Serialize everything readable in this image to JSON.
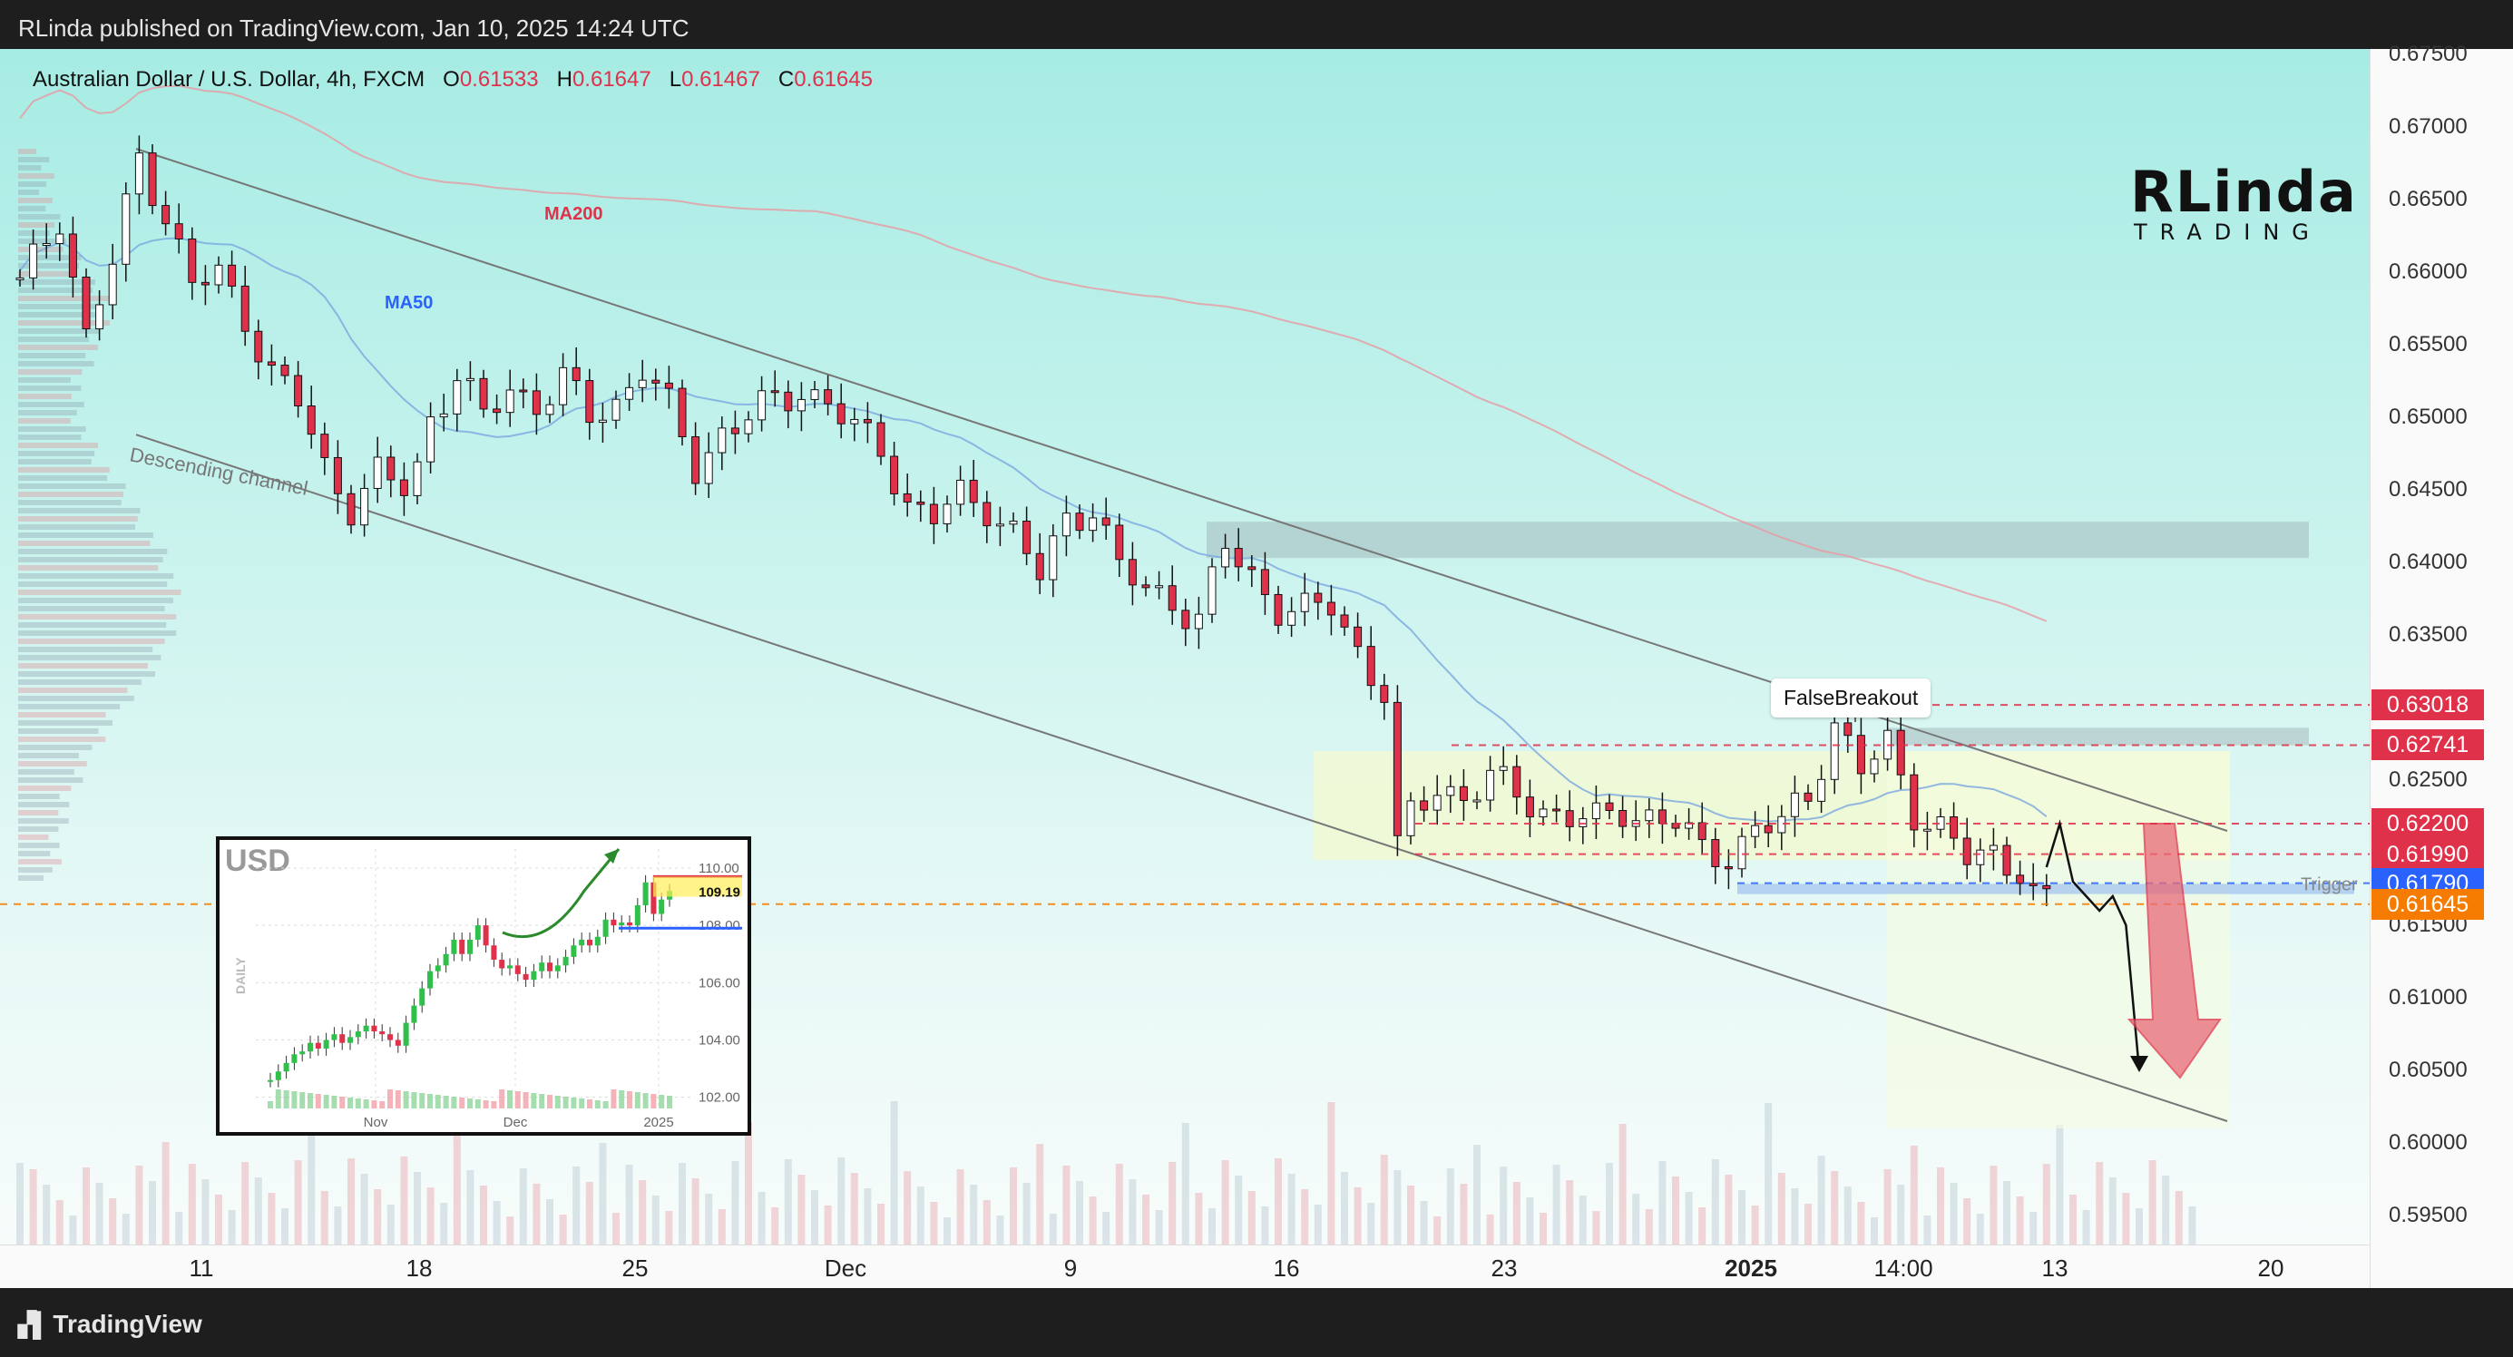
{
  "header": {
    "published": "RLinda published on TradingView.com, Jan 10, 2025 14:24 UTC"
  },
  "footer": {
    "brand": "TradingView",
    "brand_icon": "tradingview-logo-icon"
  },
  "legend": {
    "symbol": "Australian Dollar / U.S. Dollar, 4h, FXCM",
    "o_label": "O",
    "o": "0.61533",
    "h_label": "H",
    "h": "0.61647",
    "l_label": "L",
    "l": "0.61467",
    "c_label": "C",
    "c": "0.61645"
  },
  "logo": {
    "big": "RLinda",
    "small": "TRADING"
  },
  "chart_data": {
    "type": "candlestick",
    "symbol": "AUDUSD",
    "timeframe": "4h",
    "ylim": [
      0.595,
      0.675
    ],
    "y_ticks": [
      "0.67500",
      "0.67000",
      "0.66500",
      "0.66000",
      "0.65500",
      "0.65000",
      "0.64500",
      "0.64000",
      "0.63500",
      "0.63000",
      "0.62500",
      "0.62000",
      "0.61500",
      "0.61000",
      "0.60500",
      "0.60000",
      "0.59500"
    ],
    "x_ticks": [
      "11",
      "18",
      "25",
      "Dec",
      "9",
      "16",
      "23",
      "2025",
      "14:00",
      "13",
      "20"
    ],
    "x_tick_bold": [
      "2025"
    ],
    "ma_labels": {
      "ma200": "MA200",
      "ma50": "MA50"
    },
    "annotations": {
      "channel": "Descending channel",
      "false_breakout": "FalseBreakout",
      "trigger": "Trigger"
    },
    "price_levels": [
      {
        "price": 0.63018,
        "label": "0.63018",
        "color": "#e0314b"
      },
      {
        "price": 0.62741,
        "label": "0.62741",
        "color": "#e0314b"
      },
      {
        "price": 0.622,
        "label": "0.62200",
        "color": "#e0314b"
      },
      {
        "price": 0.6199,
        "label": "0.61990",
        "color": "#e0314b"
      },
      {
        "price": 0.6179,
        "label": "0.61790",
        "color": "#2962ff"
      },
      {
        "price": 0.61645,
        "label": "0.61645",
        "color": "#f57c00"
      }
    ],
    "close_path": [
      [
        0,
        0.659
      ],
      [
        3,
        0.664
      ],
      [
        5,
        0.6555
      ],
      [
        7,
        0.6605
      ],
      [
        9,
        0.668
      ],
      [
        11,
        0.664
      ],
      [
        13,
        0.659
      ],
      [
        15,
        0.6598
      ],
      [
        17,
        0.657
      ],
      [
        19,
        0.653
      ],
      [
        21,
        0.651
      ],
      [
        23,
        0.6465
      ],
      [
        25,
        0.644
      ],
      [
        27,
        0.646
      ],
      [
        29,
        0.645
      ],
      [
        30,
        0.6465
      ],
      [
        31,
        0.65
      ],
      [
        33,
        0.653
      ],
      [
        35,
        0.6498
      ],
      [
        37,
        0.652
      ],
      [
        39,
        0.651
      ],
      [
        41,
        0.6525
      ],
      [
        43,
        0.65
      ],
      [
        45,
        0.651
      ],
      [
        47,
        0.6535
      ],
      [
        49,
        0.6505
      ],
      [
        51,
        0.6465
      ],
      [
        53,
        0.649
      ],
      [
        55,
        0.65
      ],
      [
        57,
        0.651
      ],
      [
        59,
        0.652
      ],
      [
        61,
        0.651
      ],
      [
        63,
        0.649
      ],
      [
        65,
        0.648
      ],
      [
        67,
        0.644
      ],
      [
        69,
        0.643
      ],
      [
        71,
        0.6445
      ],
      [
        73,
        0.644
      ],
      [
        75,
        0.642
      ],
      [
        77,
        0.639
      ],
      [
        79,
        0.643
      ],
      [
        81,
        0.644
      ],
      [
        83,
        0.6395
      ],
      [
        85,
        0.638
      ],
      [
        87,
        0.6375
      ],
      [
        89,
        0.636
      ],
      [
        91,
        0.641
      ],
      [
        93,
        0.639
      ],
      [
        95,
        0.637
      ],
      [
        97,
        0.6365
      ],
      [
        99,
        0.637
      ],
      [
        101,
        0.634
      ],
      [
        103,
        0.631
      ],
      [
        104,
        0.62
      ],
      [
        105,
        0.6225
      ],
      [
        107,
        0.6245
      ],
      [
        109,
        0.624
      ],
      [
        111,
        0.625
      ],
      [
        113,
        0.624
      ],
      [
        115,
        0.623
      ],
      [
        117,
        0.6225
      ],
      [
        119,
        0.622
      ],
      [
        121,
        0.623
      ],
      [
        123,
        0.6225
      ],
      [
        125,
        0.622
      ],
      [
        127,
        0.62
      ],
      [
        129,
        0.62
      ],
      [
        131,
        0.6215
      ],
      [
        133,
        0.622
      ],
      [
        135,
        0.624
      ],
      [
        137,
        0.629
      ],
      [
        139,
        0.6255
      ],
      [
        141,
        0.6275
      ],
      [
        143,
        0.623
      ],
      [
        145,
        0.6215
      ],
      [
        147,
        0.6195
      ],
      [
        149,
        0.62
      ],
      [
        151,
        0.619
      ],
      [
        152,
        0.617
      ],
      [
        153,
        0.61645
      ]
    ],
    "projection": [
      [
        153,
        0.619
      ],
      [
        154,
        0.622
      ],
      [
        155,
        0.618
      ],
      [
        156,
        0.617
      ],
      [
        157,
        0.616
      ],
      [
        158,
        0.617
      ],
      [
        159,
        0.615
      ],
      [
        160,
        0.605
      ]
    ]
  },
  "mini_chart": {
    "title": "USD",
    "side_label": "DAILY",
    "y_ticks": [
      "110.00",
      "108.00",
      "106.00",
      "104.00",
      "102.00"
    ],
    "x_ticks": [
      "Nov",
      "Dec",
      "2025"
    ],
    "last_label": "109.19",
    "closes": [
      102.6,
      102.9,
      103.2,
      103.5,
      103.6,
      103.9,
      103.7,
      104.0,
      104.2,
      103.9,
      104.1,
      104.3,
      104.5,
      104.3,
      104.2,
      104.0,
      103.8,
      104.6,
      105.2,
      105.8,
      106.4,
      106.6,
      107.0,
      107.5,
      107.0,
      107.5,
      108.0,
      107.3,
      106.8,
      106.5,
      106.6,
      106.3,
      106.1,
      106.4,
      106.7,
      106.4,
      106.6,
      106.9,
      107.3,
      107.5,
      107.3,
      107.6,
      108.2,
      108.0,
      108.1,
      108.0,
      108.7,
      109.5,
      108.4,
      108.9,
      109.2
    ]
  }
}
